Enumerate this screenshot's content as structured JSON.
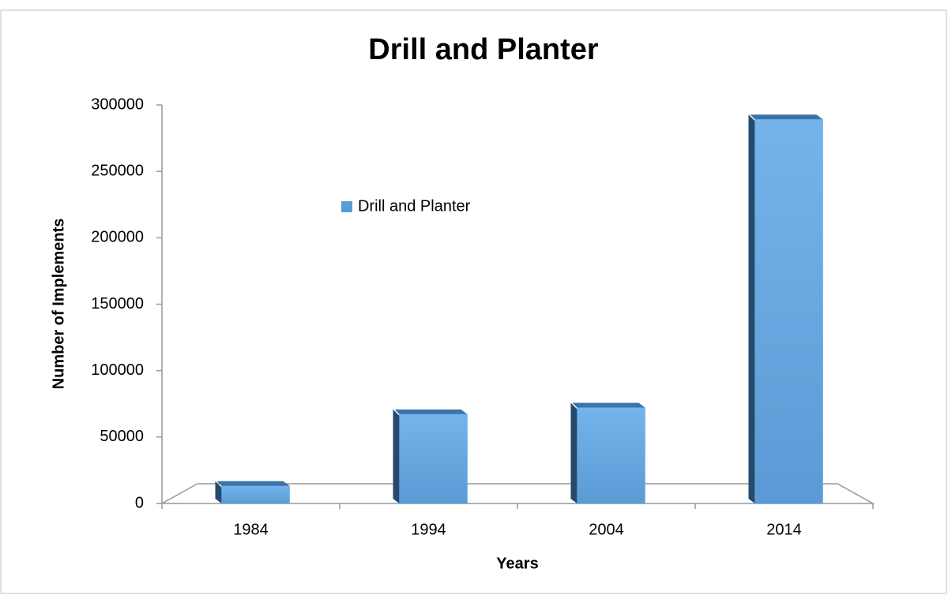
{
  "chart_data": {
    "type": "bar",
    "title": "Drill and Planter",
    "x_label": "Years",
    "y_label": "Number of Implements",
    "categories": [
      "1984",
      "1994",
      "2004",
      "2014"
    ],
    "series": [
      {
        "name": "Drill and Planter",
        "color": "#5b9bd5",
        "values": [
          12000,
          66000,
          71000,
          288000
        ]
      }
    ],
    "ylim": [
      0,
      300000
    ],
    "yticks": [
      0,
      50000,
      100000,
      150000,
      200000,
      250000,
      300000
    ],
    "grid": false,
    "legend": "upper left"
  }
}
